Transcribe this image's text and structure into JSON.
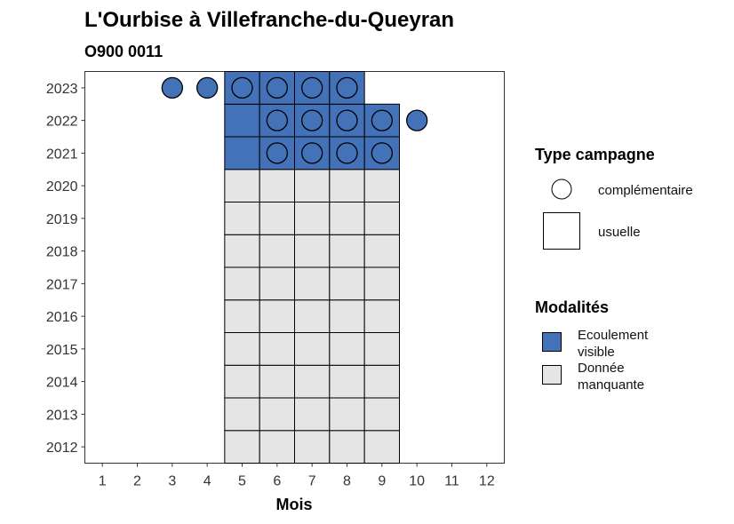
{
  "chart_data": {
    "type": "heatmap",
    "title": "L'Ourbise à Villefranche-du-Queyran",
    "subtitle": "O900 0011",
    "xlabel": "Mois",
    "ylabel": "",
    "x_ticks": [
      1,
      2,
      3,
      4,
      5,
      6,
      7,
      8,
      9,
      10,
      11,
      12
    ],
    "y_ticks": [
      2012,
      2013,
      2014,
      2015,
      2016,
      2017,
      2018,
      2019,
      2020,
      2021,
      2022,
      2023
    ],
    "xlim": [
      0.5,
      12.5
    ],
    "ylim": [
      2011.5,
      2023.5
    ],
    "legend_placement": "right",
    "colors": {
      "Ecoulement visible": "#4472b8",
      "Donnée manquante": "#e5e5e5"
    },
    "legend_type": {
      "title": "Type campagne",
      "items": [
        {
          "label": "complémentaire",
          "shape": "circle"
        },
        {
          "label": "usuelle",
          "shape": "square"
        }
      ]
    },
    "legend_modalites": {
      "title": "Modalités",
      "items": [
        {
          "label_lines": [
            "Ecoulement",
            "visible"
          ],
          "key": "Ecoulement visible"
        },
        {
          "label_lines": [
            "Donnée",
            "manquante"
          ],
          "key": "Donnée manquante"
        }
      ]
    },
    "usuelle": [
      {
        "year": 2012,
        "months": [
          5,
          6,
          7,
          8,
          9
        ],
        "modalite": "Donnée manquante"
      },
      {
        "year": 2013,
        "months": [
          5,
          6,
          7,
          8,
          9
        ],
        "modalite": "Donnée manquante"
      },
      {
        "year": 2014,
        "months": [
          5,
          6,
          7,
          8,
          9
        ],
        "modalite": "Donnée manquante"
      },
      {
        "year": 2015,
        "months": [
          5,
          6,
          7,
          8,
          9
        ],
        "modalite": "Donnée manquante"
      },
      {
        "year": 2016,
        "months": [
          5,
          6,
          7,
          8,
          9
        ],
        "modalite": "Donnée manquante"
      },
      {
        "year": 2017,
        "months": [
          5,
          6,
          7,
          8,
          9
        ],
        "modalite": "Donnée manquante"
      },
      {
        "year": 2018,
        "months": [
          5,
          6,
          7,
          8,
          9
        ],
        "modalite": "Donnée manquante"
      },
      {
        "year": 2019,
        "months": [
          5,
          6,
          7,
          8,
          9
        ],
        "modalite": "Donnée manquante"
      },
      {
        "year": 2020,
        "months": [
          5,
          6,
          7,
          8,
          9
        ],
        "modalite": "Donnée manquante"
      },
      {
        "year": 2021,
        "months": [
          5,
          6,
          7,
          8,
          9
        ],
        "modalite": "Ecoulement visible"
      },
      {
        "year": 2022,
        "months": [
          5,
          6,
          7,
          8,
          9
        ],
        "modalite": "Ecoulement visible"
      },
      {
        "year": 2023,
        "months": [
          5,
          6,
          7,
          8
        ],
        "modalite": "Ecoulement visible"
      }
    ],
    "complementaire": [
      {
        "year": 2021,
        "months": [
          6,
          7,
          8,
          9
        ],
        "modalite": "Ecoulement visible"
      },
      {
        "year": 2022,
        "months": [
          6,
          7,
          8,
          9,
          10
        ],
        "modalite": "Ecoulement visible"
      },
      {
        "year": 2023,
        "months": [
          3,
          4,
          5,
          6,
          7,
          8
        ],
        "modalite": "Ecoulement visible"
      }
    ]
  }
}
